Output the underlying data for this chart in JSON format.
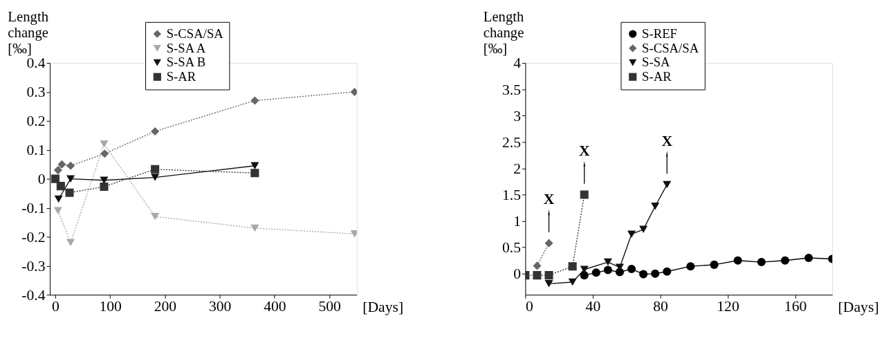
{
  "chart_data": [
    {
      "type": "line",
      "ylabel": "Length change [‰]",
      "xlabel": "[Days]",
      "xlim": [
        -10,
        550
      ],
      "ylim": [
        -0.4,
        0.4
      ],
      "xticks": [
        0,
        100,
        200,
        300,
        400,
        500
      ],
      "yticks": [
        -0.4,
        -0.3,
        -0.2,
        -0.1,
        0,
        0.1,
        0.2,
        0.3,
        0.4
      ],
      "grid": false,
      "legend": "top",
      "series": [
        {
          "name": "S-CSA/SA",
          "color": "#666666",
          "marker": "diamond",
          "line_style": "dotted",
          "x": [
            5,
            12,
            28,
            90,
            182,
            364,
            546
          ],
          "values": [
            0.03,
            0.05,
            0.045,
            0.087,
            0.164,
            0.27,
            0.3
          ]
        },
        {
          "name": "S-SA A",
          "color": "#a8a8a8",
          "marker": "triangle-down",
          "line_style": "dotted",
          "x": [
            5,
            28,
            89,
            182,
            364,
            546
          ],
          "values": [
            -0.11,
            -0.22,
            0.12,
            -0.13,
            -0.17,
            -0.19
          ]
        },
        {
          "name": "S-SA B",
          "color": "#111111",
          "marker": "triangle-down",
          "line_style": "solid",
          "x": [
            6,
            28,
            89,
            182,
            364
          ],
          "values": [
            -0.07,
            0.0,
            -0.005,
            0.005,
            0.045
          ]
        },
        {
          "name": "S-AR",
          "color": "#333333",
          "marker": "square",
          "line_style": "dotted",
          "x": [
            0,
            10,
            26,
            89,
            182,
            364
          ],
          "values": [
            0.0,
            -0.025,
            -0.048,
            -0.027,
            0.033,
            0.02
          ]
        }
      ]
    },
    {
      "type": "line",
      "ylabel": "Length change [‰]",
      "xlabel": "[Days]",
      "xlim": [
        0,
        182
      ],
      "ylim": [
        -0.4,
        4
      ],
      "xticks": [
        0,
        40,
        80,
        120,
        160
      ],
      "yticks": [
        0,
        0.5,
        1,
        1.5,
        2,
        2.5,
        3,
        3.5,
        4
      ],
      "grid": false,
      "legend": "top",
      "annotations": [
        {
          "text": "X",
          "x": 14,
          "y": 0.58
        },
        {
          "text": "X",
          "x": 35,
          "y": 1.5
        },
        {
          "text": "X",
          "x": 84,
          "y": 1.69
        }
      ],
      "series": [
        {
          "name": "S-REF",
          "color": "#000000",
          "marker": "circle",
          "line_style": "solid",
          "x": [
            35,
            42,
            49,
            56,
            63,
            70,
            77,
            84,
            98,
            112,
            126,
            140,
            154,
            168,
            182
          ],
          "values": [
            -0.03,
            0.02,
            0.07,
            0.03,
            0.09,
            -0.01,
            0.0,
            0.04,
            0.14,
            0.17,
            0.25,
            0.22,
            0.25,
            0.3,
            0.28
          ]
        },
        {
          "name": "S-CSA/SA",
          "color": "#666666",
          "marker": "diamond",
          "line_style": "dotted",
          "x": [
            7,
            14
          ],
          "values": [
            0.15,
            0.58
          ]
        },
        {
          "name": "S-SA",
          "color": "#111111",
          "marker": "triangle-down",
          "line_style": "solid",
          "x": [
            14,
            28,
            35,
            49,
            56,
            63,
            70,
            77,
            84
          ],
          "values": [
            -0.19,
            -0.16,
            0.08,
            0.22,
            0.12,
            0.75,
            0.84,
            1.28,
            1.69
          ]
        },
        {
          "name": "S-AR",
          "color": "#333333",
          "marker": "square",
          "line_style": "dotted",
          "x": [
            0,
            7,
            14,
            28,
            35
          ],
          "values": [
            -0.03,
            -0.03,
            -0.03,
            0.14,
            1.5
          ]
        }
      ]
    }
  ]
}
